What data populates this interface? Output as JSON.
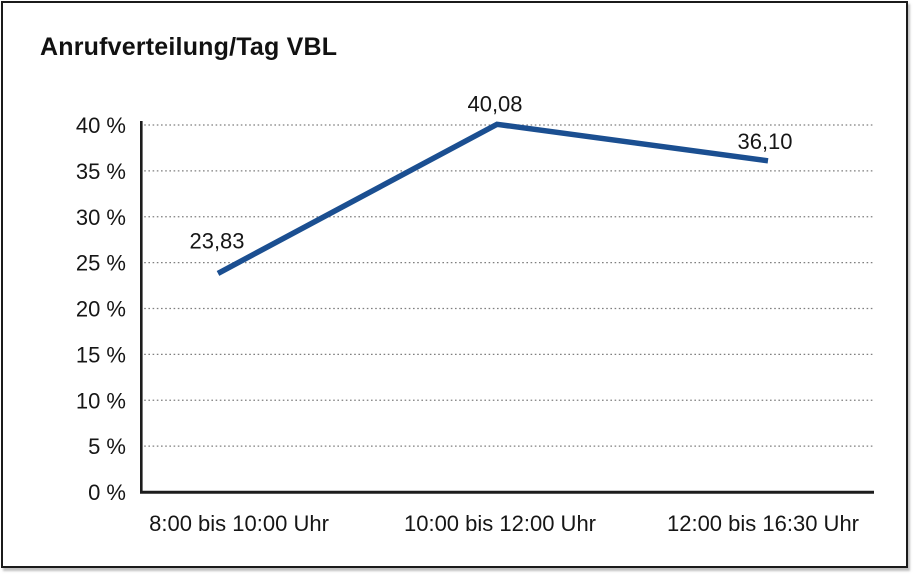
{
  "chart_data": {
    "type": "line",
    "title": "Anrufverteilung/Tag VBL",
    "categories": [
      "8:00 bis 10:00 Uhr",
      "10:00 bis 12:00 Uhr",
      "12:00 bis 16:30 Uhr"
    ],
    "values": [
      23.83,
      40.08,
      36.1
    ],
    "point_labels": [
      "23,83",
      "40,08",
      "36,10"
    ],
    "xlabel": "",
    "ylabel": "",
    "ylim": [
      0,
      40
    ],
    "ytick_step": 5,
    "ytick_labels": [
      "0 %",
      "5 %",
      "10 %",
      "15 %",
      "20 %",
      "25 %",
      "30 %",
      "35 %",
      "40 %"
    ],
    "grid": "dotted horizontal gridlines at each 5% step",
    "legend": "none",
    "line_color": "#1b4f91",
    "axis_color": "#1c1c1c",
    "gridline_color": "#7f7f7f"
  }
}
